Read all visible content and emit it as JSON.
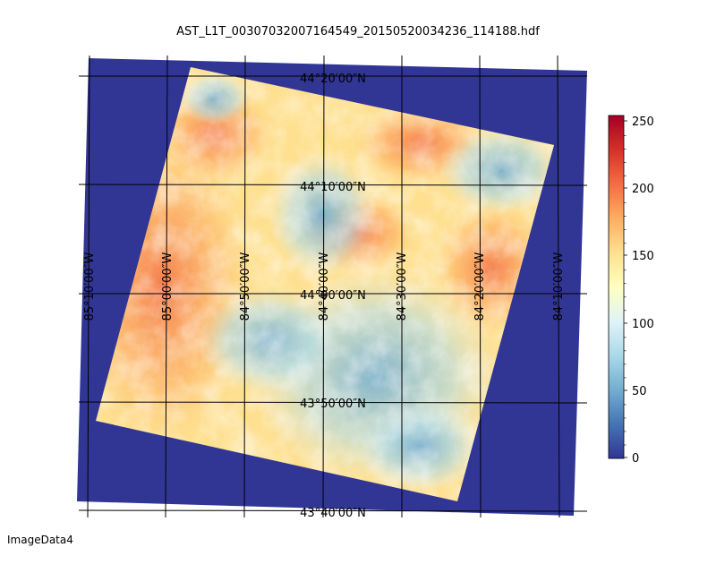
{
  "title": "AST_L1T_00307032007164549_20150520034236_114188.hdf",
  "caption": "ImageData4",
  "colors": {
    "nodata": "#313695",
    "colormap": [
      "#313695",
      "#4575b4",
      "#74add1",
      "#abd9e9",
      "#e0f3f8",
      "#ffffbf",
      "#fee090",
      "#fdae61",
      "#f46d43",
      "#d73027",
      "#a50026"
    ]
  },
  "map": {
    "latitude_labels": [
      "44°20′00″N",
      "44°10′00″N",
      "44°00′00″N",
      "43°50′00″N",
      "43°40′00″N"
    ],
    "longitude_labels": [
      "85°10′00″W",
      "85°00′00″W",
      "84°50′00″W",
      "84°40′00″W",
      "84°30′00″W",
      "84°20′00″W",
      "84°10′00″W"
    ]
  },
  "colorbar": {
    "ticks": [
      "250",
      "200",
      "150",
      "100",
      "50",
      "0"
    ],
    "vmin": 0,
    "vmax": 255
  }
}
